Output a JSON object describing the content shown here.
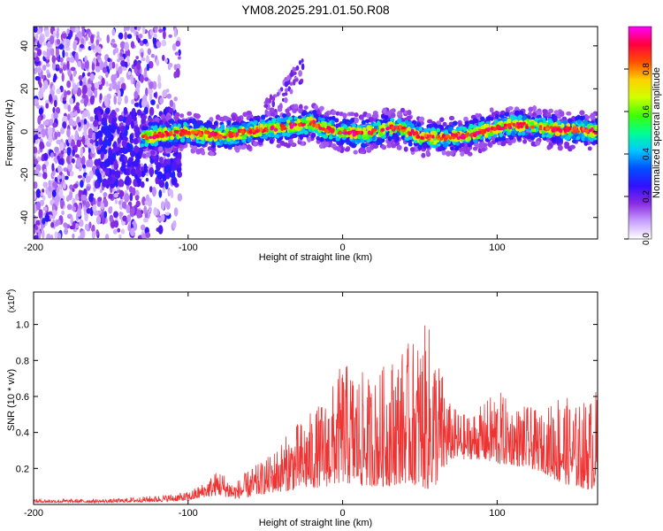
{
  "title": "YM08.2025.291.01.50.R08",
  "chart_data": [
    {
      "type": "heatmap",
      "panel": "spectrogram",
      "xlabel": "Height of straight line (km)",
      "ylabel": "Frequency (Hz)",
      "xlim": [
        -200,
        165
      ],
      "ylim": [
        -50,
        49
      ],
      "xticks": [
        -200,
        -100,
        0,
        100
      ],
      "xtick_labels": [
        "-200",
        "-100",
        "0",
        "100"
      ],
      "yticks": [
        -40,
        -20,
        0,
        20,
        40
      ],
      "ytick_labels": [
        "-40",
        "-20",
        "0",
        "20",
        "40"
      ],
      "colorbar": {
        "label": "Normalized spectral amplitude",
        "range": [
          0,
          1
        ],
        "ticks": [
          0.0,
          0.2,
          0.4,
          0.6,
          0.8
        ],
        "tick_labels": [
          "0.0",
          "0.2",
          "0.4",
          "0.6",
          "0.8"
        ],
        "colors": [
          "#ffffff",
          "#c8a0ff",
          "#8a2be2",
          "#3010ff",
          "#0050ff",
          "#00c8ff",
          "#00ff90",
          "#40ff00",
          "#d0ff00",
          "#ffd000",
          "#ff5000",
          "#ff0040",
          "#ff00ff"
        ]
      },
      "ridge": {
        "x": [
          -130,
          -115,
          -100,
          -80,
          -60,
          -40,
          -30,
          -20,
          -10,
          0,
          10,
          20,
          30,
          40,
          50,
          60,
          70,
          80,
          90,
          100,
          110,
          120,
          130,
          140,
          150,
          165
        ],
        "y": [
          -3,
          -1,
          0,
          -2,
          0,
          2,
          3,
          4,
          1,
          0,
          -1,
          0,
          2,
          1,
          -2,
          -3,
          -2,
          -2,
          0,
          2,
          3,
          3,
          2,
          1,
          1,
          0
        ]
      },
      "noise_region_x": [
        -200,
        -105
      ],
      "upward_branch": {
        "x": [
          -50,
          -40,
          -35,
          -30,
          -25
        ],
        "y": [
          10,
          15,
          22,
          25,
          30
        ]
      }
    },
    {
      "type": "line",
      "panel": "snr",
      "xlabel": "Height of straight line (km)",
      "ylabel": "SNR (10 * v/v)",
      "scale_label": "(x10",
      "scale_exp": "4",
      "scale_close": ")",
      "xlim": [
        -200,
        165
      ],
      "ylim": [
        0,
        1.18
      ],
      "xticks": [
        -200,
        -100,
        0,
        100
      ],
      "xtick_labels": [
        "-200",
        "-100",
        "0",
        "100"
      ],
      "yticks": [
        0.2,
        0.4,
        0.6,
        0.8,
        1.0
      ],
      "ytick_labels": [
        "0.2",
        "0.4",
        "0.6",
        "0.8",
        "1.0"
      ],
      "color": "#ee3333",
      "envelope": {
        "x": [
          -200,
          -150,
          -120,
          -100,
          -90,
          -80,
          -70,
          -60,
          -50,
          -40,
          -30,
          -20,
          -10,
          0,
          10,
          20,
          30,
          40,
          50,
          55,
          60,
          70,
          80,
          90,
          100,
          110,
          120,
          130,
          140,
          150,
          160,
          165
        ],
        "base": [
          0.01,
          0.01,
          0.015,
          0.02,
          0.04,
          0.05,
          0.03,
          0.04,
          0.06,
          0.07,
          0.08,
          0.09,
          0.1,
          0.12,
          0.1,
          0.1,
          0.1,
          0.12,
          0.1,
          0.08,
          0.1,
          0.25,
          0.25,
          0.25,
          0.22,
          0.22,
          0.2,
          0.18,
          0.12,
          0.1,
          0.08,
          0.1
        ],
        "peak": [
          0.03,
          0.03,
          0.05,
          0.07,
          0.12,
          0.2,
          0.12,
          0.2,
          0.25,
          0.35,
          0.45,
          0.52,
          0.6,
          0.8,
          0.75,
          0.7,
          0.82,
          0.88,
          0.95,
          1.02,
          0.9,
          0.55,
          0.5,
          0.55,
          0.65,
          0.55,
          0.55,
          0.5,
          0.65,
          0.55,
          0.6,
          0.65
        ]
      }
    }
  ]
}
